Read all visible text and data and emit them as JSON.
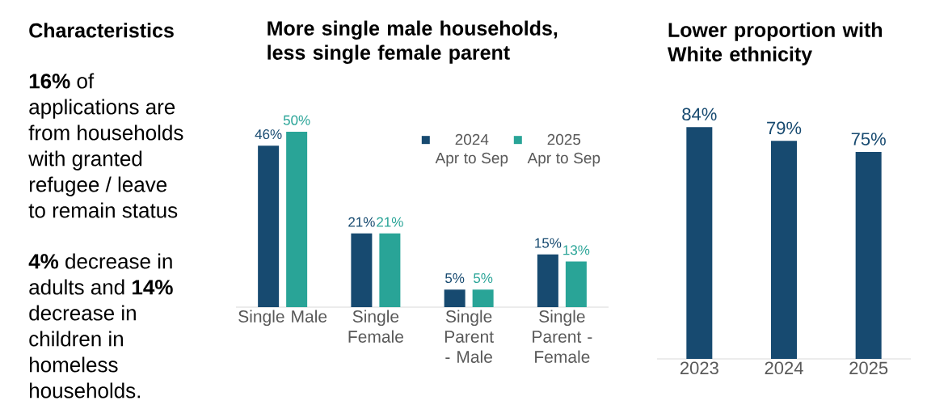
{
  "chart_data": [
    {
      "type": "other",
      "title": "Characteristics",
      "annotations": [
        "**16%** of applications are from households with granted refugee / leave to remain status",
        "**4%** decrease in adults and **14%** decrease in children in homeless households."
      ]
    },
    {
      "type": "bar",
      "title": "More single male households, less single female parent",
      "categories": [
        "Single Male",
        "Single Female",
        "Single Parent - Male",
        "Single Parent - Female"
      ],
      "legend": "top right",
      "series": [
        {
          "name": "2024 Apr to Sep",
          "color": "#174a70",
          "values": [
            46,
            21,
            5,
            15
          ],
          "value_labels": [
            "46%",
            "21%",
            "5%",
            "15%"
          ]
        },
        {
          "name": "2025 Apr to Sep",
          "color": "#29a497",
          "values": [
            50,
            21,
            5,
            13
          ],
          "value_labels": [
            "50%",
            "21%",
            "5%",
            "13%"
          ]
        }
      ]
    },
    {
      "type": "bar",
      "title": "Lower proportion with White ethnicity",
      "categories": [
        "2023",
        "2024",
        "2025"
      ],
      "series": [
        {
          "color": "#174a70",
          "values": [
            84,
            79,
            75
          ],
          "value_labels": [
            "84%",
            "79%",
            "75%"
          ]
        }
      ]
    }
  ]
}
